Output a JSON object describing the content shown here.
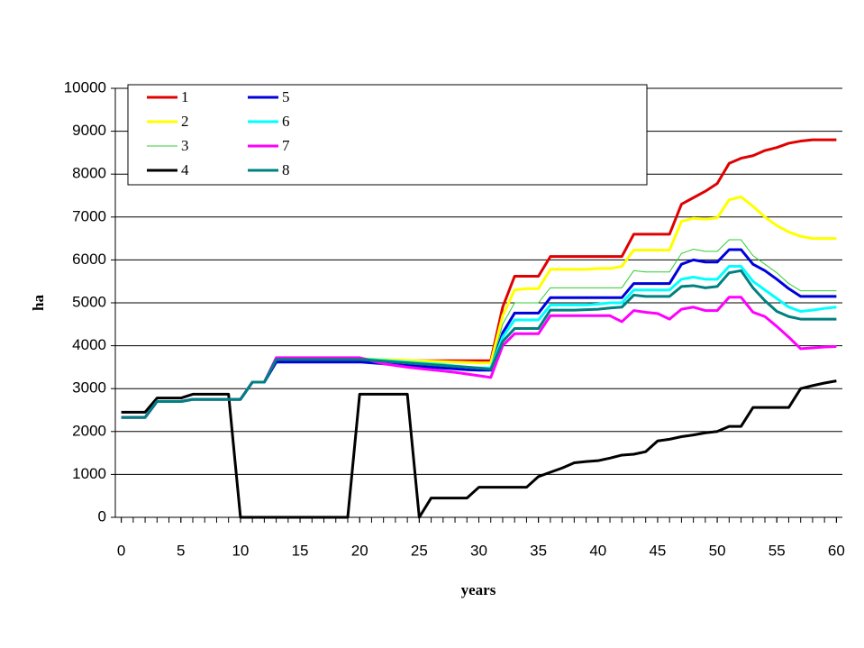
{
  "chart_data": {
    "type": "line",
    "xlabel": "years",
    "ylabel": "ha",
    "x": [
      0,
      1,
      2,
      3,
      4,
      5,
      6,
      7,
      8,
      9,
      10,
      11,
      12,
      13,
      14,
      15,
      16,
      17,
      18,
      19,
      20,
      21,
      22,
      23,
      24,
      25,
      26,
      27,
      28,
      29,
      30,
      31,
      32,
      33,
      34,
      35,
      36,
      37,
      38,
      39,
      40,
      41,
      42,
      43,
      44,
      45,
      46,
      47,
      48,
      49,
      50,
      51,
      52,
      53,
      54,
      55,
      56,
      57,
      58,
      59,
      60
    ],
    "xlim": [
      -0.5,
      60.5
    ],
    "xticks": [
      0,
      5,
      10,
      15,
      20,
      25,
      30,
      35,
      40,
      45,
      50,
      55,
      60
    ],
    "ylim": [
      0,
      10000
    ],
    "yticks": [
      0,
      1000,
      2000,
      3000,
      4000,
      5000,
      6000,
      7000,
      8000,
      9000,
      10000
    ],
    "grid": true,
    "legend": "top-left",
    "series": [
      {
        "name": "1",
        "color": "#e00000",
        "line_width": 3,
        "values": [
          2330,
          2330,
          2330,
          2700,
          2700,
          2700,
          2750,
          2750,
          2750,
          2750,
          2750,
          3150,
          3150,
          3650,
          3650,
          3650,
          3650,
          3650,
          3650,
          3650,
          3650,
          3650,
          3650,
          3650,
          3650,
          3650,
          3650,
          3650,
          3650,
          3650,
          3650,
          3650,
          4900,
          5620,
          5620,
          5620,
          6080,
          6080,
          6080,
          6080,
          6080,
          6080,
          6080,
          6600,
          6600,
          6600,
          6600,
          7300,
          7450,
          7600,
          7780,
          8250,
          8370,
          8430,
          8550,
          8620,
          8720,
          8770,
          8800,
          8800,
          8800
        ]
      },
      {
        "name": "2",
        "color": "#ffff00",
        "line_width": 3,
        "values": [
          2330,
          2330,
          2330,
          2700,
          2700,
          2700,
          2750,
          2750,
          2750,
          2750,
          2750,
          3150,
          3150,
          3700,
          3700,
          3700,
          3700,
          3700,
          3700,
          3700,
          3700,
          3690,
          3680,
          3670,
          3660,
          3650,
          3640,
          3630,
          3620,
          3610,
          3600,
          3600,
          4700,
          5300,
          5330,
          5330,
          5780,
          5780,
          5780,
          5780,
          5800,
          5800,
          5850,
          6230,
          6230,
          6230,
          6230,
          6900,
          6970,
          6950,
          6980,
          7400,
          7470,
          7250,
          7000,
          6800,
          6650,
          6550,
          6500,
          6500,
          6500
        ]
      },
      {
        "name": "3",
        "color": "#33cc33",
        "line_width": 1,
        "values": [
          2330,
          2330,
          2330,
          2700,
          2700,
          2700,
          2750,
          2750,
          2750,
          2750,
          2750,
          3150,
          3150,
          3700,
          3700,
          3700,
          3700,
          3700,
          3700,
          3700,
          3700,
          3670,
          3650,
          3630,
          3610,
          3590,
          3570,
          3550,
          3530,
          3510,
          3500,
          3500,
          4500,
          5000,
          5000,
          5000,
          5350,
          5350,
          5350,
          5350,
          5350,
          5350,
          5350,
          5750,
          5720,
          5720,
          5720,
          6150,
          6250,
          6200,
          6200,
          6470,
          6470,
          6100,
          5900,
          5700,
          5450,
          5280,
          5280,
          5280,
          5280
        ]
      },
      {
        "name": "4",
        "color": "#000000",
        "line_width": 3,
        "values": [
          2450,
          2450,
          2450,
          2780,
          2780,
          2780,
          2870,
          2870,
          2870,
          2870,
          0,
          0,
          0,
          0,
          0,
          0,
          0,
          0,
          0,
          0,
          2870,
          2870,
          2870,
          2870,
          2870,
          0,
          450,
          450,
          450,
          450,
          700,
          700,
          700,
          700,
          700,
          950,
          1050,
          1150,
          1270,
          1300,
          1320,
          1380,
          1450,
          1470,
          1530,
          1780,
          1820,
          1880,
          1920,
          1970,
          2000,
          2120,
          2120,
          2560,
          2560,
          2560,
          2560,
          3000,
          3070,
          3130,
          3180
        ]
      },
      {
        "name": "5",
        "color": "#0000dd",
        "line_width": 3,
        "values": [
          2330,
          2330,
          2330,
          2700,
          2700,
          2700,
          2750,
          2750,
          2750,
          2750,
          2750,
          3150,
          3150,
          3620,
          3620,
          3620,
          3620,
          3620,
          3620,
          3620,
          3620,
          3600,
          3580,
          3560,
          3540,
          3520,
          3500,
          3480,
          3460,
          3440,
          3430,
          3430,
          4300,
          4760,
          4760,
          4760,
          5120,
          5120,
          5120,
          5120,
          5120,
          5120,
          5120,
          5450,
          5450,
          5450,
          5450,
          5900,
          6000,
          5950,
          5950,
          6240,
          6240,
          5900,
          5750,
          5550,
          5330,
          5150,
          5150,
          5150,
          5150
        ]
      },
      {
        "name": "6",
        "color": "#00ffff",
        "line_width": 3,
        "values": [
          2330,
          2330,
          2330,
          2700,
          2700,
          2700,
          2750,
          2750,
          2750,
          2750,
          2750,
          3150,
          3150,
          3700,
          3700,
          3700,
          3700,
          3700,
          3700,
          3700,
          3700,
          3680,
          3660,
          3640,
          3620,
          3600,
          3580,
          3560,
          3530,
          3500,
          3480,
          3480,
          4200,
          4600,
          4600,
          4600,
          4950,
          4950,
          4950,
          4950,
          4970,
          5000,
          5000,
          5300,
          5300,
          5300,
          5300,
          5550,
          5600,
          5550,
          5550,
          5850,
          5850,
          5500,
          5300,
          5100,
          4900,
          4800,
          4830,
          4870,
          4900
        ]
      },
      {
        "name": "7",
        "color": "#ff00ff",
        "line_width": 3,
        "values": [
          2330,
          2330,
          2330,
          2700,
          2700,
          2700,
          2750,
          2750,
          2750,
          2750,
          2750,
          3150,
          3150,
          3720,
          3720,
          3720,
          3720,
          3720,
          3720,
          3720,
          3720,
          3650,
          3580,
          3540,
          3500,
          3470,
          3440,
          3410,
          3380,
          3340,
          3300,
          3260,
          4000,
          4280,
          4280,
          4280,
          4700,
          4700,
          4700,
          4700,
          4700,
          4700,
          4560,
          4820,
          4780,
          4750,
          4620,
          4850,
          4900,
          4820,
          4820,
          5130,
          5130,
          4780,
          4680,
          4450,
          4200,
          3930,
          3950,
          3970,
          3980
        ]
      },
      {
        "name": "8",
        "color": "#008080",
        "line_width": 3,
        "values": [
          2330,
          2330,
          2330,
          2700,
          2700,
          2700,
          2750,
          2750,
          2750,
          2750,
          2750,
          3150,
          3150,
          3680,
          3680,
          3680,
          3680,
          3680,
          3680,
          3680,
          3680,
          3660,
          3640,
          3620,
          3600,
          3580,
          3560,
          3540,
          3520,
          3500,
          3480,
          3450,
          4100,
          4400,
          4400,
          4400,
          4830,
          4830,
          4830,
          4840,
          4850,
          4880,
          4900,
          5180,
          5150,
          5150,
          5150,
          5380,
          5400,
          5350,
          5380,
          5700,
          5750,
          5350,
          5050,
          4800,
          4680,
          4620,
          4620,
          4620,
          4620
        ]
      }
    ]
  }
}
